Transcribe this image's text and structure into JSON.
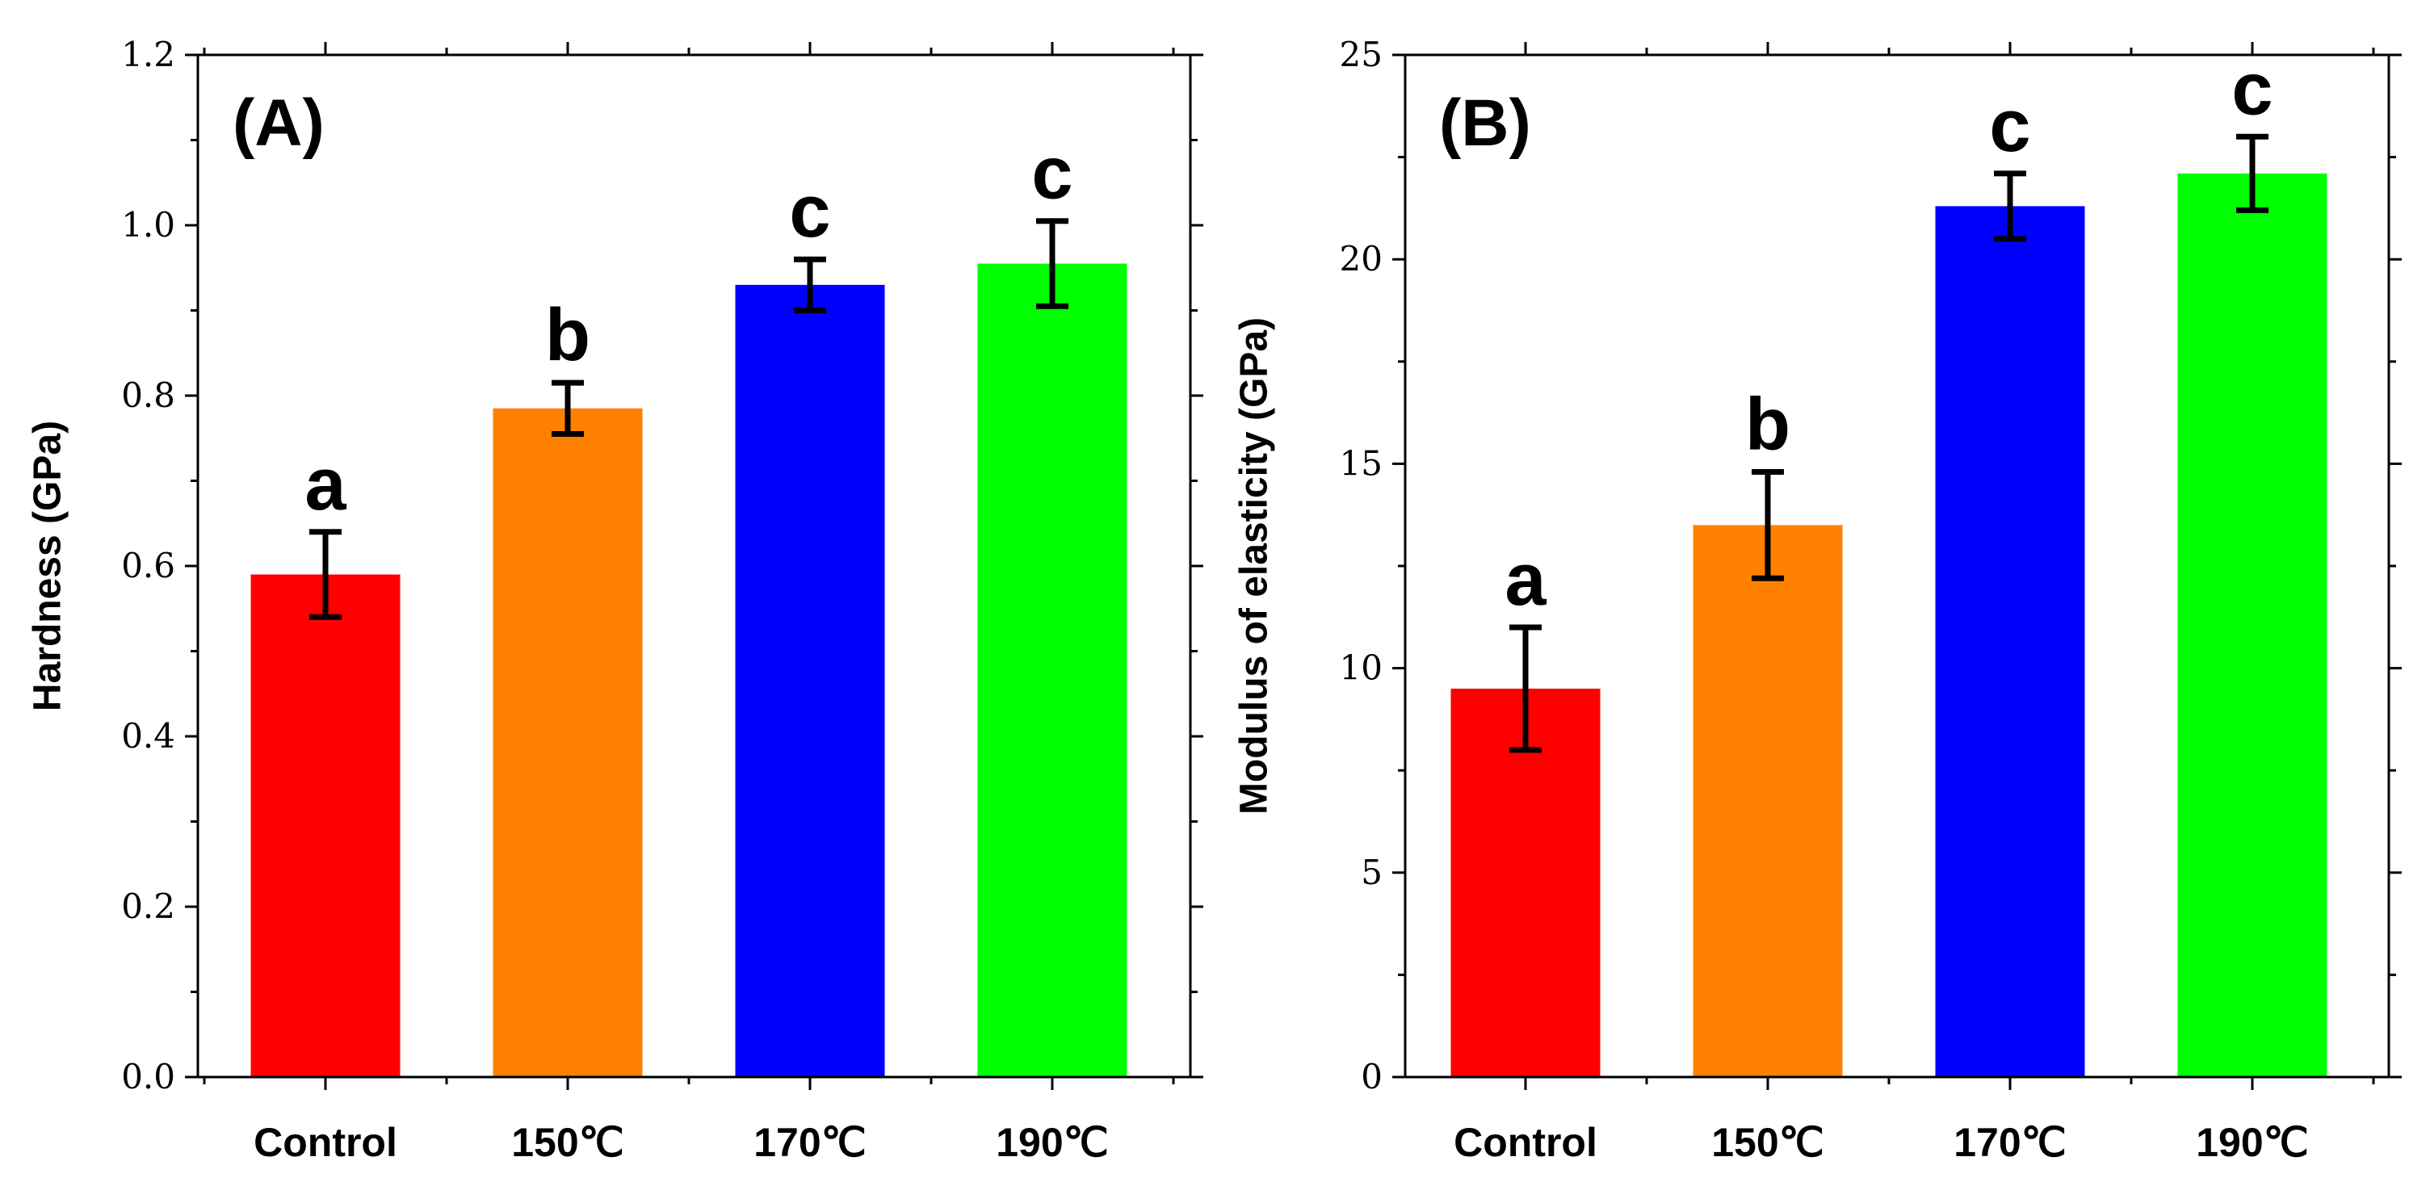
{
  "chart_data": [
    {
      "type": "bar",
      "panel_label": "(A)",
      "title": "",
      "xlabel": "",
      "ylabel": "Hardness (GPa)",
      "categories": [
        "Control",
        "150℃",
        "170℃",
        "190℃"
      ],
      "values": [
        0.59,
        0.785,
        0.93,
        0.955
      ],
      "errors": [
        0.05,
        0.03,
        0.03,
        0.05
      ],
      "significance": [
        "a",
        "b",
        "c",
        "c"
      ],
      "colors": [
        "#ff0000",
        "#ff8000",
        "#0000ff",
        "#00ff00"
      ],
      "ylim": [
        0,
        1.2
      ],
      "yticks": [
        0.0,
        0.2,
        0.4,
        0.6,
        0.8,
        1.0,
        1.2
      ],
      "ytick_labels": [
        "0.0",
        "0.2",
        "0.4",
        "0.6",
        "0.8",
        "1.0",
        "1.2"
      ],
      "grid": false
    },
    {
      "type": "bar",
      "panel_label": "(B)",
      "title": "",
      "xlabel": "",
      "ylabel": "Modulus of elasticity (GPa)",
      "categories": [
        "Control",
        "150℃",
        "170℃",
        "190℃"
      ],
      "values": [
        9.5,
        13.5,
        21.3,
        22.1
      ],
      "errors": [
        1.5,
        1.3,
        0.8,
        0.9
      ],
      "significance": [
        "a",
        "b",
        "c",
        "c"
      ],
      "colors": [
        "#ff0000",
        "#ff8000",
        "#0000ff",
        "#00ff00"
      ],
      "ylim": [
        0,
        25
      ],
      "yticks": [
        0,
        5,
        10,
        15,
        20,
        25
      ],
      "ytick_labels": [
        "0",
        "5",
        "10",
        "15",
        "20",
        "25"
      ],
      "grid": false
    }
  ]
}
